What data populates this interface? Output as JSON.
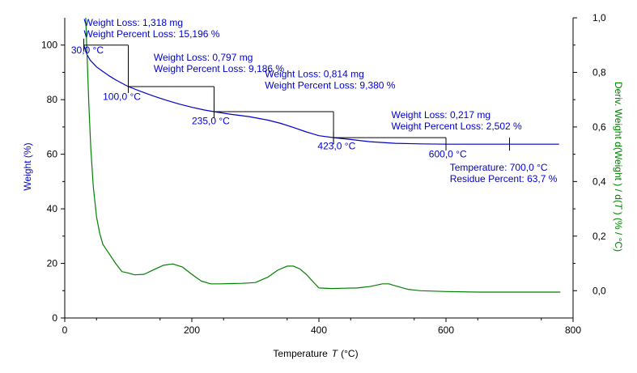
{
  "chart_data": {
    "type": "line",
    "xlabel": "Temperature",
    "xlabel_symbol": "T",
    "xlabel_unit": "(°C)",
    "ylabel_left": "Weight  (%)",
    "ylabel_right_parts": [
      "Deriv. Weight d(Weight ) / d(",
      "T",
      " )  (% / °C)"
    ],
    "x_ticks": [
      0,
      200,
      400,
      600,
      800
    ],
    "y_left_ticks": [
      0,
      20,
      40,
      60,
      80,
      100
    ],
    "y_right_ticks": [
      "0,0",
      "0,2",
      "0,4",
      "0,6",
      "0,8",
      "1,0"
    ],
    "xlim": [
      0,
      800
    ],
    "ylim_left": [
      0,
      110
    ],
    "ylim_right": [
      -0.1,
      1.0
    ],
    "colors": {
      "weight": "#0000cc",
      "deriv": "#008000",
      "axis": "#000000"
    },
    "series": [
      {
        "name": "Weight",
        "axis": "left",
        "x": [
          30,
          35,
          40,
          50,
          60,
          70,
          80,
          90,
          100,
          120,
          140,
          160,
          180,
          200,
          220,
          235,
          260,
          290,
          320,
          340,
          360,
          380,
          400,
          423,
          450,
          480,
          520,
          560,
          600,
          650,
          700,
          778
        ],
        "y": [
          100,
          96.5,
          94.5,
          92,
          90.3,
          88.7,
          87.3,
          86,
          84.8,
          83,
          81.3,
          79.8,
          78.4,
          77.2,
          76.2,
          75.6,
          74.7,
          73.8,
          72.5,
          71.3,
          69.8,
          68.2,
          66.8,
          66.1,
          65.4,
          64.6,
          64.0,
          63.8,
          63.7,
          63.7,
          63.7,
          63.7
        ]
      },
      {
        "name": "Deriv. Weight",
        "axis": "right",
        "x": [
          33,
          35,
          38,
          41,
          45,
          50,
          55,
          60,
          70,
          80,
          90,
          100,
          110,
          125,
          140,
          155,
          170,
          185,
          200,
          215,
          230,
          245,
          260,
          280,
          300,
          320,
          335,
          350,
          360,
          370,
          380,
          390,
          400,
          420,
          440,
          460,
          480,
          500,
          510,
          520,
          540,
          560,
          600,
          650,
          700,
          780
        ],
        "y": [
          1.0,
          0.87,
          0.68,
          0.52,
          0.38,
          0.27,
          0.21,
          0.17,
          0.135,
          0.1,
          0.07,
          0.065,
          0.058,
          0.06,
          0.077,
          0.093,
          0.098,
          0.087,
          0.06,
          0.035,
          0.025,
          0.025,
          0.026,
          0.027,
          0.03,
          0.05,
          0.075,
          0.09,
          0.09,
          0.08,
          0.06,
          0.035,
          0.01,
          0.008,
          0.009,
          0.01,
          0.015,
          0.025,
          0.025,
          0.018,
          0.005,
          0.0,
          -0.003,
          -0.005,
          -0.005,
          -0.005
        ]
      }
    ],
    "step_markers": [
      {
        "x1": 30,
        "x2": 100,
        "y1": 100,
        "y2": 84.8
      },
      {
        "x1": 100,
        "x2": 235,
        "y1": 84.8,
        "y2": 75.6
      },
      {
        "x1": 235,
        "x2": 423,
        "y1": 75.6,
        "y2": 66.1
      },
      {
        "x1": 423,
        "x2": 600,
        "y1": 66.1,
        "y2": 63.7
      },
      {
        "x1": 700,
        "x2": 700,
        "y1": 63.7,
        "y2": 63.7
      }
    ],
    "annotations": [
      {
        "lines": [
          "Weight Loss: 1,318 mg",
          "Weight Percent Loss: 15,196 %"
        ],
        "x": 30,
        "y": 107
      },
      {
        "lines": [
          "Weight Loss: 0,797 mg",
          "Weight Percent Loss: 9,186 %"
        ],
        "x": 140,
        "y": 94.3
      },
      {
        "lines": [
          "Weight Loss: 0,814 mg",
          "Weight Percent Loss: 9,380 %"
        ],
        "x": 315,
        "y": 88.2
      },
      {
        "lines": [
          "Weight Loss: 0,217 mg",
          "Weight Percent Loss: 2,502 %"
        ],
        "x": 514,
        "y": 73.3
      },
      {
        "lines": [
          "Temperature: 700,0 °C",
          "Residue Percent: 63,7 %"
        ],
        "x": 606,
        "y": 53.9
      }
    ],
    "temperature_labels": [
      {
        "text": "30,0 °C",
        "x": 10,
        "y": 96.9
      },
      {
        "text": "100,0 °C",
        "x": 60,
        "y": 79.9
      },
      {
        "text": "235,0 °C",
        "x": 200,
        "y": 71.0
      },
      {
        "text": "423,0 °C",
        "x": 398,
        "y": 61.8
      },
      {
        "text": "600,0 °C",
        "x": 573,
        "y": 58.8
      }
    ]
  }
}
